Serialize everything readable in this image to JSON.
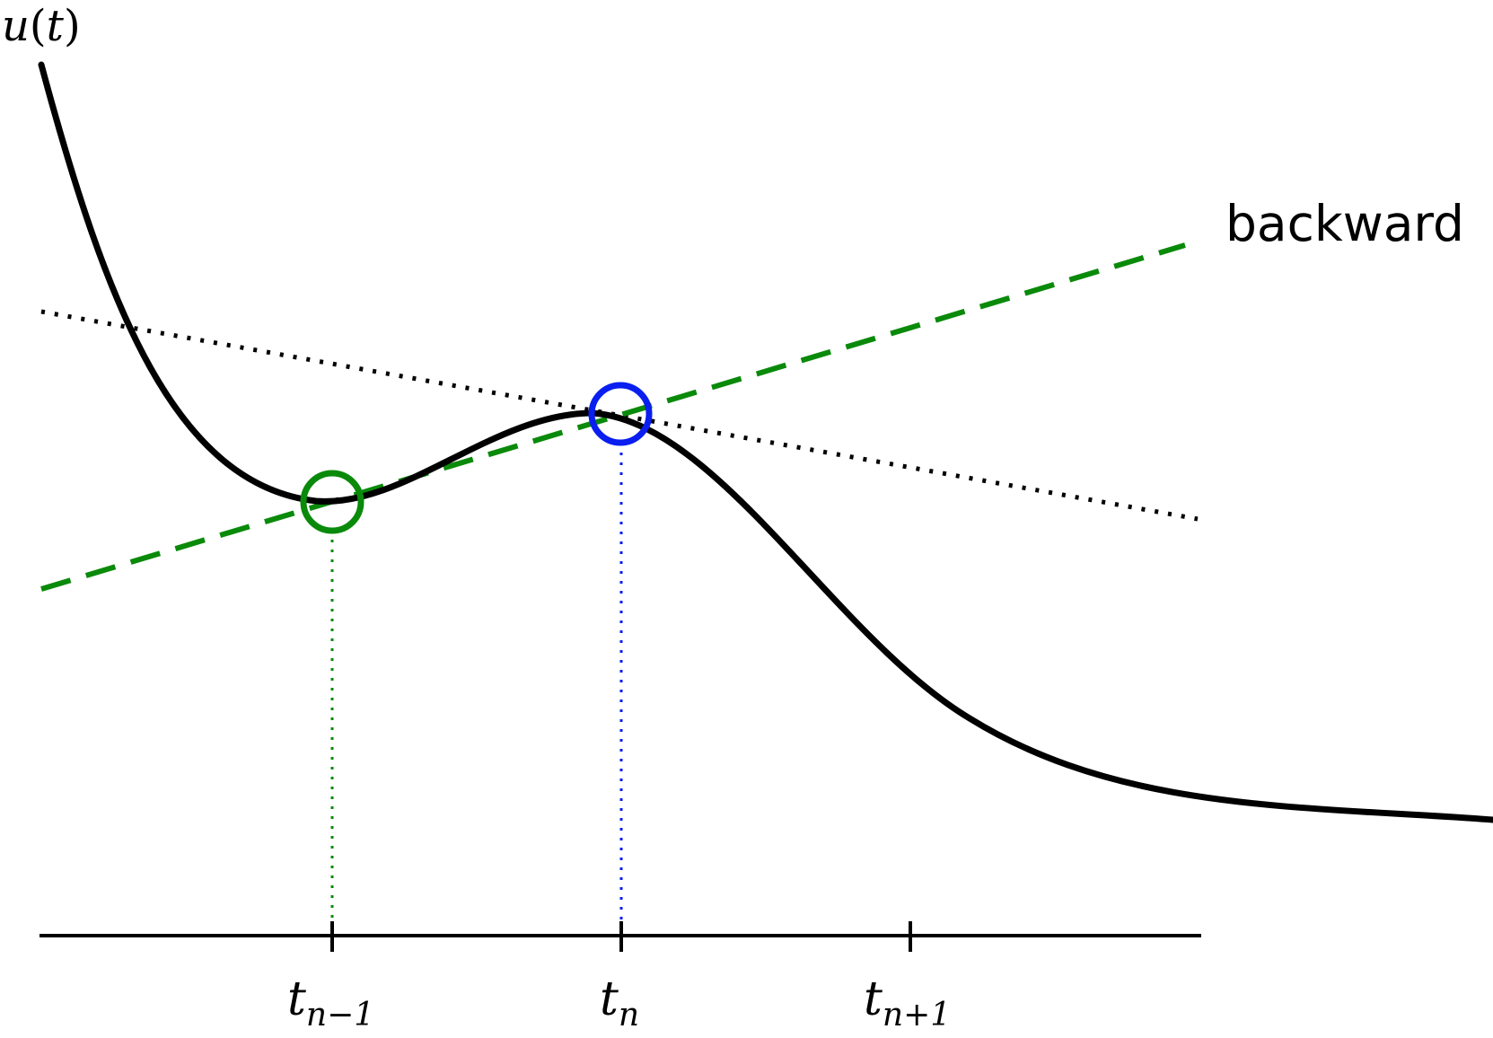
{
  "y_axis_label": {
    "base": "u",
    "arg": "t"
  },
  "line_label": "backward",
  "tick_labels": [
    {
      "base": "t",
      "sub": "n−1"
    },
    {
      "base": "t",
      "sub": "n"
    },
    {
      "base": "t",
      "sub": "n+1"
    }
  ],
  "colors": {
    "curve": "#000000",
    "backward_line": "#0a8a0a",
    "point_previous": "#0a8a0a",
    "point_current": "#0a1ef0",
    "dotted_tangent": "#000000",
    "axis": "#000000"
  }
}
